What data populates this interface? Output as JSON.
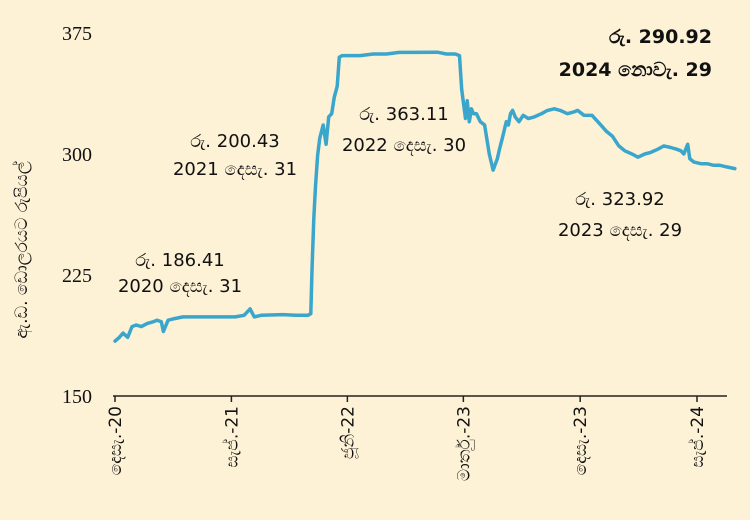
{
  "chart_data": {
    "type": "line",
    "ylabel": "ඇ.ඩ. ඩොලරයට රුපියල්",
    "ylim": [
      150,
      375
    ],
    "yticks": [
      150,
      225,
      300,
      375
    ],
    "x_ticks": [
      {
        "date": "2020-12-01",
        "label": "දෙසැ.-20"
      },
      {
        "date": "2021-09-01",
        "label": "සැප්.-21"
      },
      {
        "date": "2022-06-01",
        "label": "ජූනි-22"
      },
      {
        "date": "2023-03-01",
        "label": "මාර්තු.-23"
      },
      {
        "date": "2023-12-01",
        "label": "දෙසැ.-23"
      },
      {
        "date": "2024-09-01",
        "label": "සැප්.-24"
      }
    ],
    "color": "#3aa6cc",
    "series": [
      {
        "points": [
          [
            "2020-12-01",
            184
          ],
          [
            "2020-12-10",
            186
          ],
          [
            "2020-12-20",
            189
          ],
          [
            "2020-12-31",
            186.41
          ],
          [
            "2021-01-10",
            193
          ],
          [
            "2021-01-20",
            194
          ],
          [
            "2021-02-01",
            193
          ],
          [
            "2021-02-15",
            195
          ],
          [
            "2021-03-01",
            196
          ],
          [
            "2021-03-10",
            197
          ],
          [
            "2021-03-20",
            196
          ],
          [
            "2021-03-25",
            190
          ],
          [
            "2021-04-05",
            197
          ],
          [
            "2021-04-20",
            198
          ],
          [
            "2021-05-10",
            199
          ],
          [
            "2021-06-10",
            199
          ],
          [
            "2021-07-10",
            199
          ],
          [
            "2021-08-10",
            199
          ],
          [
            "2021-09-10",
            199
          ],
          [
            "2021-10-01",
            200
          ],
          [
            "2021-10-15",
            204
          ],
          [
            "2021-10-25",
            199
          ],
          [
            "2021-11-10",
            200
          ],
          [
            "2021-12-31",
            200.43
          ],
          [
            "2022-01-31",
            200
          ],
          [
            "2022-02-28",
            200
          ],
          [
            "2022-03-07",
            201
          ],
          [
            "2022-03-10",
            230
          ],
          [
            "2022-03-14",
            260
          ],
          [
            "2022-03-18",
            280
          ],
          [
            "2022-03-23",
            299
          ],
          [
            "2022-03-28",
            310
          ],
          [
            "2022-04-05",
            318
          ],
          [
            "2022-04-12",
            306
          ],
          [
            "2022-04-18",
            323
          ],
          [
            "2022-04-25",
            325
          ],
          [
            "2022-05-01",
            335
          ],
          [
            "2022-05-08",
            342
          ],
          [
            "2022-05-13",
            360
          ],
          [
            "2022-05-20",
            361
          ],
          [
            "2022-06-01",
            361
          ],
          [
            "2022-07-01",
            361
          ],
          [
            "2022-08-01",
            362
          ],
          [
            "2022-09-01",
            362
          ],
          [
            "2022-10-01",
            363
          ],
          [
            "2022-11-01",
            363
          ],
          [
            "2022-12-30",
            363.11
          ],
          [
            "2023-01-20",
            362
          ],
          [
            "2023-02-10",
            362
          ],
          [
            "2023-02-20",
            361
          ],
          [
            "2023-02-25",
            340
          ],
          [
            "2023-03-02",
            330
          ],
          [
            "2023-03-06",
            322
          ],
          [
            "2023-03-10",
            333
          ],
          [
            "2023-03-15",
            320
          ],
          [
            "2023-03-20",
            328
          ],
          [
            "2023-03-25",
            325
          ],
          [
            "2023-04-01",
            325
          ],
          [
            "2023-04-10",
            320
          ],
          [
            "2023-04-20",
            318
          ],
          [
            "2023-05-01",
            300
          ],
          [
            "2023-05-10",
            290
          ],
          [
            "2023-05-20",
            297
          ],
          [
            "2023-05-25",
            303
          ],
          [
            "2023-06-01",
            310
          ],
          [
            "2023-06-10",
            320
          ],
          [
            "2023-06-15",
            318
          ],
          [
            "2023-06-20",
            325
          ],
          [
            "2023-06-25",
            327
          ],
          [
            "2023-07-01",
            323
          ],
          [
            "2023-07-10",
            320
          ],
          [
            "2023-07-20",
            324
          ],
          [
            "2023-08-01",
            322
          ],
          [
            "2023-08-15",
            323
          ],
          [
            "2023-09-01",
            325
          ],
          [
            "2023-09-15",
            327
          ],
          [
            "2023-10-01",
            328
          ],
          [
            "2023-10-15",
            327
          ],
          [
            "2023-11-01",
            325
          ],
          [
            "2023-11-15",
            326
          ],
          [
            "2023-11-25",
            327
          ],
          [
            "2023-12-10",
            324
          ],
          [
            "2023-12-29",
            323.92
          ],
          [
            "2024-01-15",
            319
          ],
          [
            "2024-02-01",
            314
          ],
          [
            "2024-02-15",
            311
          ],
          [
            "2024-03-01",
            305
          ],
          [
            "2024-03-15",
            302
          ],
          [
            "2024-04-01",
            300
          ],
          [
            "2024-04-15",
            298
          ],
          [
            "2024-05-01",
            300
          ],
          [
            "2024-05-15",
            301
          ],
          [
            "2024-06-01",
            303
          ],
          [
            "2024-06-15",
            305
          ],
          [
            "2024-07-01",
            304
          ],
          [
            "2024-07-15",
            303
          ],
          [
            "2024-07-25",
            302
          ],
          [
            "2024-08-01",
            300
          ],
          [
            "2024-08-10",
            306
          ],
          [
            "2024-08-15",
            297
          ],
          [
            "2024-08-25",
            295
          ],
          [
            "2024-09-10",
            294
          ],
          [
            "2024-09-25",
            294
          ],
          [
            "2024-10-10",
            293
          ],
          [
            "2024-10-25",
            293
          ],
          [
            "2024-11-10",
            292
          ],
          [
            "2024-11-29",
            290.92
          ]
        ]
      }
    ],
    "annotations": [
      {
        "name": "ann-2020",
        "value": "රු. 186.41",
        "date_label": "2020 දෙසැ. 31",
        "bold": false
      },
      {
        "name": "ann-2021",
        "value": "රු. 200.43",
        "date_label": "2021 දෙසැ. 31",
        "bold": false
      },
      {
        "name": "ann-2022",
        "value": "රු. 363.11",
        "date_label": "2022 දෙසැ. 30",
        "bold": false
      },
      {
        "name": "ann-2023",
        "value": "රු. 323.92",
        "date_label": "2023 දෙසැ. 29",
        "bold": false
      },
      {
        "name": "ann-2024",
        "value": "රු. 290.92",
        "date_label": "2024 නොවැ. 29",
        "bold": true
      }
    ]
  }
}
